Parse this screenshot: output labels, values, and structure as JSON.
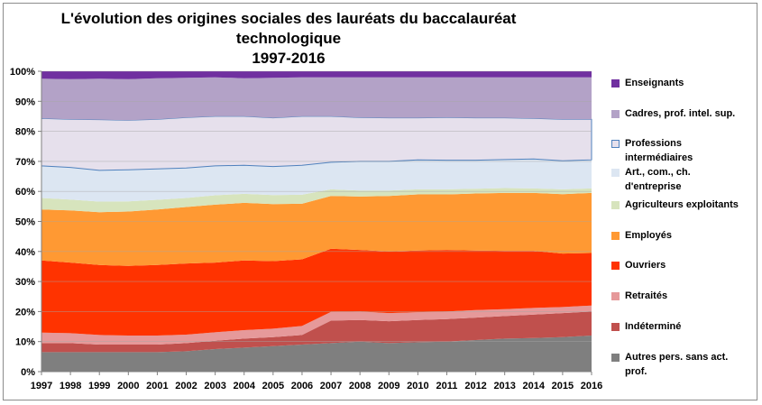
{
  "chart_data": {
    "type": "area",
    "stacked": true,
    "percent": true,
    "title": "L'évolution des origines sociales des lauréats du baccalauréat technologique",
    "subtitle": "1997-2016",
    "x": [
      "1997",
      "1998",
      "1999",
      "2000",
      "2001",
      "2002",
      "2003",
      "2004",
      "2005",
      "2006",
      "2007",
      "2008",
      "2009",
      "2010",
      "2011",
      "2012",
      "2013",
      "2014",
      "2015",
      "2016"
    ],
    "ylim": [
      0,
      100
    ],
    "yticks": [
      "0%",
      "10%",
      "20%",
      "30%",
      "40%",
      "50%",
      "60%",
      "70%",
      "80%",
      "90%",
      "100%"
    ],
    "legend_position": "right",
    "series": [
      {
        "name": "Autres pers. sans act. prof.",
        "color": "#7f7f7f",
        "values": [
          6.5,
          6.5,
          6.5,
          6.5,
          6.5,
          6.8,
          7.5,
          8.0,
          8.5,
          9.0,
          9.5,
          10.0,
          9.5,
          9.8,
          10.0,
          10.5,
          11.0,
          11.2,
          11.5,
          12.0
        ]
      },
      {
        "name": "Indéterminé",
        "color": "#c0504d",
        "values": [
          3.0,
          3.0,
          2.5,
          2.5,
          2.5,
          2.7,
          2.8,
          3.0,
          3.0,
          3.2,
          7.5,
          7.2,
          7.3,
          7.4,
          7.5,
          7.5,
          7.5,
          7.8,
          8.0,
          8.0
        ]
      },
      {
        "name": "Retraités",
        "color": "#e6999a",
        "values": [
          3.5,
          3.3,
          3.2,
          3.0,
          3.0,
          2.8,
          2.8,
          2.8,
          2.8,
          3.0,
          2.9,
          2.8,
          2.7,
          2.6,
          2.5,
          2.5,
          2.3,
          2.2,
          2.0,
          2.0
        ]
      },
      {
        "name": "Ouvriers",
        "color": "#ff3300",
        "values": [
          24.0,
          23.5,
          23.3,
          23.2,
          23.5,
          23.7,
          23.2,
          23.2,
          22.5,
          22.2,
          21.0,
          20.5,
          20.5,
          20.5,
          20.5,
          19.8,
          19.4,
          19.0,
          17.8,
          17.5
        ]
      },
      {
        "name": "Employés",
        "color": "#ff9933",
        "values": [
          17.0,
          17.4,
          17.6,
          18.1,
          18.5,
          18.8,
          19.3,
          19.2,
          19.0,
          18.5,
          17.6,
          17.8,
          18.5,
          18.7,
          18.5,
          19.0,
          19.3,
          19.3,
          19.8,
          20.0
        ]
      },
      {
        "name": "Agriculteurs exploitants",
        "color": "#d7e4bd",
        "values": [
          3.8,
          3.6,
          3.5,
          3.4,
          3.2,
          3.0,
          3.1,
          3.0,
          3.0,
          3.0,
          2.2,
          2.0,
          1.8,
          1.7,
          1.7,
          1.6,
          1.6,
          1.5,
          1.6,
          1.5
        ]
      },
      {
        "name": "Art., com., ch. d'entreprise",
        "color": "#dce6f2",
        "values": [
          10.7,
          10.7,
          10.4,
          10.5,
          10.3,
          10.0,
          9.8,
          9.5,
          9.5,
          9.8,
          9.0,
          9.7,
          9.7,
          9.8,
          9.7,
          9.5,
          9.5,
          9.8,
          9.5,
          9.5
        ]
      },
      {
        "name": "Professions intermédiaires",
        "color": "#e6e0ec",
        "values": [
          15.8,
          16.0,
          16.9,
          16.5,
          16.5,
          16.8,
          16.5,
          16.3,
          16.2,
          16.3,
          15.3,
          14.6,
          14.5,
          14.0,
          14.2,
          14.1,
          13.9,
          13.5,
          13.8,
          13.5
        ]
      },
      {
        "name": "Cadres, prof. intel. sup.",
        "color": "#b3a2c7",
        "values": [
          13.2,
          13.4,
          13.6,
          13.7,
          13.7,
          13.2,
          13.0,
          12.7,
          13.3,
          13.0,
          13.0,
          13.4,
          13.5,
          13.5,
          13.4,
          13.5,
          13.5,
          13.7,
          14.0,
          14.0
        ]
      },
      {
        "name": "Enseignants",
        "color": "#7030a0",
        "values": [
          2.5,
          2.6,
          2.5,
          2.6,
          2.3,
          2.2,
          2.0,
          2.3,
          2.2,
          2.0,
          2.0,
          2.0,
          2.0,
          2.0,
          2.0,
          2.0,
          2.0,
          2.0,
          2.0,
          2.0
        ]
      }
    ]
  }
}
